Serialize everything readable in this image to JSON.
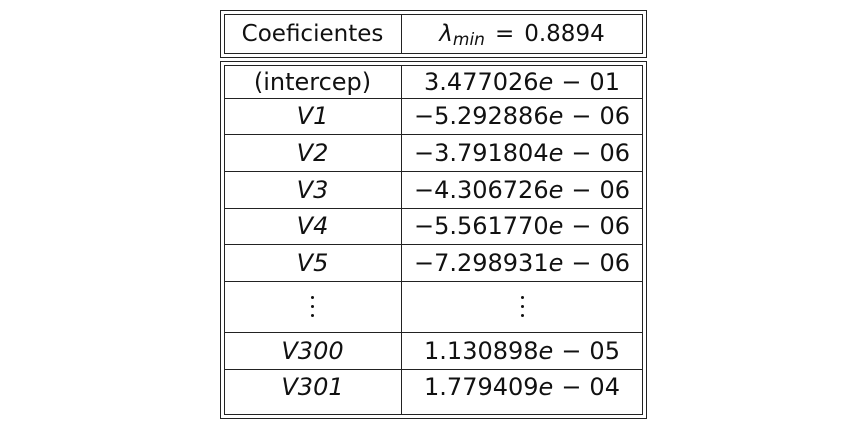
{
  "table": {
    "header": {
      "col1": "Coeficientes",
      "col2_symbol": "λ",
      "col2_subscript": "min",
      "col2_equals": "=",
      "col2_value": "0.8894"
    },
    "rows": [
      {
        "name": "(intercep)",
        "name_italic": false,
        "mantissa": "3.477026",
        "exp_e": "e",
        "exp_op": "−",
        "exp_val": "01"
      },
      {
        "name": "V1",
        "name_italic": true,
        "mantissa": "−5.292886",
        "exp_e": "e",
        "exp_op": "−",
        "exp_val": "06"
      },
      {
        "name": "V2",
        "name_italic": true,
        "mantissa": "−3.791804",
        "exp_e": "e",
        "exp_op": "−",
        "exp_val": "06"
      },
      {
        "name": "V3",
        "name_italic": true,
        "mantissa": "−4.306726",
        "exp_e": "e",
        "exp_op": "−",
        "exp_val": "06"
      },
      {
        "name": "V4",
        "name_italic": true,
        "mantissa": "−5.561770",
        "exp_e": "e",
        "exp_op": "−",
        "exp_val": "06"
      },
      {
        "name": "V5",
        "name_italic": true,
        "mantissa": "−7.298931",
        "exp_e": "e",
        "exp_op": "−",
        "exp_val": "06"
      },
      {
        "name": "V300",
        "name_italic": true,
        "mantissa": "1.130898",
        "exp_e": "e",
        "exp_op": "−",
        "exp_val": "05"
      },
      {
        "name": "V301",
        "name_italic": true,
        "mantissa": "1.779409",
        "exp_e": "e",
        "exp_op": "−",
        "exp_val": "04"
      }
    ]
  }
}
